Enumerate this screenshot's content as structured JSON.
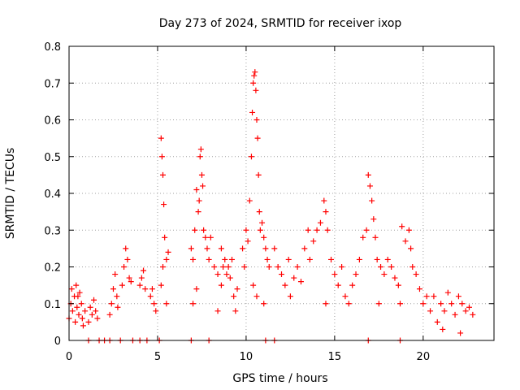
{
  "chart_data": {
    "type": "scatter",
    "title": "Day 273 of 2024, SRMTID for receiver ixop",
    "xlabel": "GPS time / hours",
    "ylabel": "SRMTID / TECUs",
    "xlim": [
      0,
      24
    ],
    "ylim": [
      0,
      0.8
    ],
    "xticks": [
      0,
      5,
      10,
      15,
      20
    ],
    "yticks": [
      0,
      0.1,
      0.2,
      0.3,
      0.4,
      0.5,
      0.6,
      0.7,
      0.8
    ],
    "xtick_labels": [
      "0",
      "5",
      "10",
      "15",
      "20"
    ],
    "ytick_labels": [
      "0",
      "0.1",
      "0.2",
      "0.3",
      "0.4",
      "0.5",
      "0.6",
      "0.7",
      "0.8"
    ],
    "grid": true,
    "marker": "+",
    "color": "#ff0000",
    "series": [
      {
        "name": "SRMTID",
        "points": [
          [
            0.0,
            0.06
          ],
          [
            0.1,
            0.1
          ],
          [
            0.15,
            0.14
          ],
          [
            0.2,
            0.08
          ],
          [
            0.3,
            0.12
          ],
          [
            0.35,
            0.05
          ],
          [
            0.4,
            0.15
          ],
          [
            0.45,
            0.09
          ],
          [
            0.5,
            0.12
          ],
          [
            0.55,
            0.07
          ],
          [
            0.6,
            0.13
          ],
          [
            0.7,
            0.1
          ],
          [
            0.75,
            0.06
          ],
          [
            0.8,
            0.04
          ],
          [
            0.9,
            0.08
          ],
          [
            1.1,
            0.05
          ],
          [
            1.2,
            0.09
          ],
          [
            1.3,
            0.07
          ],
          [
            1.4,
            0.11
          ],
          [
            1.5,
            0.08
          ],
          [
            1.6,
            0.06
          ],
          [
            2.3,
            0.07
          ],
          [
            2.4,
            0.1
          ],
          [
            2.5,
            0.14
          ],
          [
            2.6,
            0.18
          ],
          [
            2.7,
            0.12
          ],
          [
            2.75,
            0.09
          ],
          [
            3.0,
            0.15
          ],
          [
            3.1,
            0.2
          ],
          [
            3.2,
            0.25
          ],
          [
            3.3,
            0.22
          ],
          [
            3.4,
            0.17
          ],
          [
            3.5,
            0.16
          ],
          [
            4.0,
            0.15
          ],
          [
            4.1,
            0.17
          ],
          [
            4.2,
            0.19
          ],
          [
            4.3,
            0.14
          ],
          [
            4.6,
            0.12
          ],
          [
            4.7,
            0.14
          ],
          [
            4.8,
            0.1
          ],
          [
            4.9,
            0.08
          ],
          [
            5.2,
            0.55
          ],
          [
            5.25,
            0.5
          ],
          [
            5.3,
            0.45
          ],
          [
            5.35,
            0.37
          ],
          [
            5.2,
            0.15
          ],
          [
            5.3,
            0.2
          ],
          [
            5.4,
            0.28
          ],
          [
            5.5,
            0.22
          ],
          [
            5.6,
            0.24
          ],
          [
            5.5,
            0.1
          ],
          [
            6.9,
            0.25
          ],
          [
            7.0,
            0.22
          ],
          [
            7.1,
            0.3
          ],
          [
            7.2,
            0.41
          ],
          [
            7.3,
            0.35
          ],
          [
            7.35,
            0.38
          ],
          [
            7.4,
            0.5
          ],
          [
            7.45,
            0.52
          ],
          [
            7.5,
            0.45
          ],
          [
            7.55,
            0.42
          ],
          [
            7.6,
            0.3
          ],
          [
            7.7,
            0.28
          ],
          [
            7.8,
            0.25
          ],
          [
            7.9,
            0.22
          ],
          [
            7.0,
            0.1
          ],
          [
            7.2,
            0.14
          ],
          [
            8.0,
            0.28
          ],
          [
            8.2,
            0.2
          ],
          [
            8.4,
            0.18
          ],
          [
            8.6,
            0.15
          ],
          [
            8.7,
            0.2
          ],
          [
            8.8,
            0.22
          ],
          [
            8.9,
            0.18
          ],
          [
            9.0,
            0.2
          ],
          [
            9.1,
            0.17
          ],
          [
            9.3,
            0.12
          ],
          [
            9.4,
            0.08
          ],
          [
            9.5,
            0.14
          ],
          [
            8.4,
            0.08
          ],
          [
            8.6,
            0.25
          ],
          [
            9.2,
            0.22
          ],
          [
            9.8,
            0.25
          ],
          [
            9.9,
            0.2
          ],
          [
            10.0,
            0.3
          ],
          [
            10.1,
            0.27
          ],
          [
            10.2,
            0.38
          ],
          [
            10.3,
            0.5
          ],
          [
            10.35,
            0.62
          ],
          [
            10.4,
            0.7
          ],
          [
            10.45,
            0.72
          ],
          [
            10.5,
            0.73
          ],
          [
            10.55,
            0.68
          ],
          [
            10.6,
            0.6
          ],
          [
            10.65,
            0.55
          ],
          [
            10.7,
            0.45
          ],
          [
            10.75,
            0.35
          ],
          [
            10.8,
            0.3
          ],
          [
            10.9,
            0.32
          ],
          [
            11.0,
            0.28
          ],
          [
            11.1,
            0.25
          ],
          [
            11.2,
            0.22
          ],
          [
            11.3,
            0.2
          ],
          [
            10.4,
            0.15
          ],
          [
            10.6,
            0.12
          ],
          [
            11.0,
            0.1
          ],
          [
            11.6,
            0.25
          ],
          [
            11.8,
            0.2
          ],
          [
            12.0,
            0.18
          ],
          [
            12.2,
            0.15
          ],
          [
            12.4,
            0.22
          ],
          [
            12.5,
            0.12
          ],
          [
            12.7,
            0.17
          ],
          [
            12.9,
            0.2
          ],
          [
            13.1,
            0.16
          ],
          [
            13.3,
            0.25
          ],
          [
            13.5,
            0.3
          ],
          [
            13.6,
            0.22
          ],
          [
            13.8,
            0.27
          ],
          [
            14.0,
            0.3
          ],
          [
            14.2,
            0.32
          ],
          [
            14.4,
            0.38
          ],
          [
            14.5,
            0.35
          ],
          [
            14.6,
            0.3
          ],
          [
            14.8,
            0.22
          ],
          [
            15.0,
            0.18
          ],
          [
            15.2,
            0.15
          ],
          [
            15.4,
            0.2
          ],
          [
            15.6,
            0.12
          ],
          [
            15.8,
            0.1
          ],
          [
            16.0,
            0.15
          ],
          [
            16.2,
            0.18
          ],
          [
            16.4,
            0.22
          ],
          [
            14.5,
            0.1
          ],
          [
            16.6,
            0.28
          ],
          [
            16.8,
            0.3
          ],
          [
            16.9,
            0.45
          ],
          [
            17.0,
            0.42
          ],
          [
            17.1,
            0.38
          ],
          [
            17.2,
            0.33
          ],
          [
            17.3,
            0.28
          ],
          [
            17.4,
            0.22
          ],
          [
            17.6,
            0.2
          ],
          [
            17.8,
            0.18
          ],
          [
            18.0,
            0.22
          ],
          [
            18.2,
            0.2
          ],
          [
            18.4,
            0.17
          ],
          [
            18.6,
            0.15
          ],
          [
            18.8,
            0.31
          ],
          [
            19.0,
            0.27
          ],
          [
            19.2,
            0.3
          ],
          [
            19.3,
            0.25
          ],
          [
            19.4,
            0.2
          ],
          [
            18.7,
            0.1
          ],
          [
            17.5,
            0.1
          ],
          [
            19.6,
            0.18
          ],
          [
            19.8,
            0.14
          ],
          [
            20.0,
            0.1
          ],
          [
            20.2,
            0.12
          ],
          [
            20.4,
            0.08
          ],
          [
            20.6,
            0.12
          ],
          [
            20.8,
            0.05
          ],
          [
            21.0,
            0.1
          ],
          [
            21.2,
            0.08
          ],
          [
            21.4,
            0.13
          ],
          [
            21.6,
            0.1
          ],
          [
            21.8,
            0.07
          ],
          [
            22.0,
            0.12
          ],
          [
            22.2,
            0.1
          ],
          [
            22.4,
            0.08
          ],
          [
            22.6,
            0.09
          ],
          [
            22.8,
            0.07
          ],
          [
            21.1,
            0.03
          ],
          [
            22.1,
            0.02
          ],
          [
            1.1,
            0.0
          ],
          [
            1.7,
            0.0
          ],
          [
            2.0,
            0.0
          ],
          [
            2.3,
            0.0
          ],
          [
            2.9,
            0.0
          ],
          [
            3.6,
            0.0
          ],
          [
            4.0,
            0.0
          ],
          [
            4.4,
            0.0
          ],
          [
            5.1,
            0.0
          ],
          [
            6.9,
            0.0
          ],
          [
            7.9,
            0.0
          ],
          [
            11.1,
            0.0
          ],
          [
            11.6,
            0.0
          ],
          [
            16.9,
            0.0
          ],
          [
            18.7,
            0.0
          ]
        ]
      }
    ]
  }
}
